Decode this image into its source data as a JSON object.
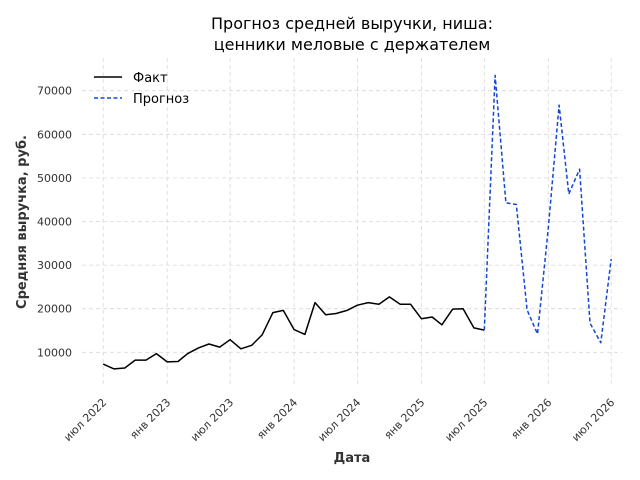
{
  "chart_data": {
    "type": "line",
    "title_lines": [
      "Прогноз средней выручки, ниша:",
      "ценники меловые с держателем"
    ],
    "xlabel": "Дата",
    "ylabel": "Средняя выручка, руб.",
    "x_ticks": [
      {
        "date": "2022-07-01",
        "label": "июл 2022"
      },
      {
        "date": "2023-01-01",
        "label": "янв 2023"
      },
      {
        "date": "2023-07-01",
        "label": "июл 2023"
      },
      {
        "date": "2024-01-01",
        "label": "янв 2024"
      },
      {
        "date": "2024-07-01",
        "label": "июл 2024"
      },
      {
        "date": "2025-01-01",
        "label": "янв 2025"
      },
      {
        "date": "2025-07-01",
        "label": "июл 2025"
      },
      {
        "date": "2026-01-01",
        "label": "янв 2026"
      },
      {
        "date": "2026-07-01",
        "label": "июл 2026"
      }
    ],
    "y_ticks": [
      10000,
      20000,
      30000,
      40000,
      50000,
      60000,
      70000
    ],
    "xlim": [
      "2022-05-01",
      "2026-08-01"
    ],
    "ylim": [
      2500,
      77500
    ],
    "grid": true,
    "legend_position": "top-left",
    "series": [
      {
        "name": "Факт",
        "color": "#000000",
        "style": "solid",
        "x": [
          "2022-07-01",
          "2022-08-01",
          "2022-09-01",
          "2022-10-01",
          "2022-11-01",
          "2022-12-01",
          "2023-01-01",
          "2023-02-01",
          "2023-03-01",
          "2023-04-01",
          "2023-05-01",
          "2023-06-01",
          "2023-07-01",
          "2023-08-01",
          "2023-09-01",
          "2023-10-01",
          "2023-11-01",
          "2023-12-01",
          "2024-01-01",
          "2024-02-01",
          "2024-03-01",
          "2024-04-01",
          "2024-05-01",
          "2024-06-01",
          "2024-07-01",
          "2024-08-01",
          "2024-09-01",
          "2024-10-01",
          "2024-11-01",
          "2024-12-01",
          "2025-01-01",
          "2025-02-01",
          "2025-03-01",
          "2025-04-01",
          "2025-05-01",
          "2025-06-01",
          "2025-07-01"
        ],
        "y": [
          7300,
          6200,
          6400,
          8200,
          8200,
          9700,
          7800,
          7900,
          9700,
          11000,
          11900,
          11200,
          12900,
          10800,
          11600,
          14000,
          19100,
          19600,
          15200,
          14100,
          21400,
          18600,
          18900,
          19600,
          20800,
          21400,
          21000,
          22700,
          21000,
          21000,
          17700,
          18100,
          16300,
          19900,
          20000,
          15600,
          15100
        ]
      },
      {
        "name": "Прогноз",
        "color": "#1346d4",
        "style": "dashed",
        "x": [
          "2025-07-01",
          "2025-08-01",
          "2025-09-01",
          "2025-10-01",
          "2025-11-01",
          "2025-12-01",
          "2026-01-01",
          "2026-02-01",
          "2026-03-01",
          "2026-04-01",
          "2026-05-01",
          "2026-06-01",
          "2026-07-01"
        ],
        "y": [
          15100,
          73500,
          44300,
          43900,
          19700,
          14200,
          38500,
          66700,
          46300,
          52000,
          16700,
          12200,
          31400
        ]
      }
    ]
  }
}
